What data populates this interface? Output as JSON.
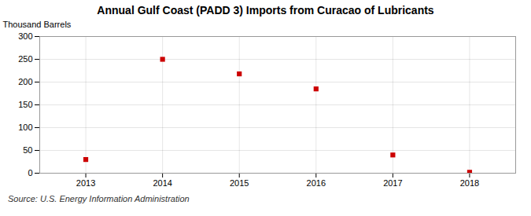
{
  "chart_data": {
    "type": "scatter",
    "title": "Annual Gulf Coast (PADD 3) Imports from Curacao of Lubricants",
    "ylabel": "Thousand Barrels",
    "source": "Source: U.S. Energy Information Administration",
    "x": [
      2013,
      2014,
      2015,
      2016,
      2017,
      2018
    ],
    "values": [
      30,
      250,
      218,
      185,
      40,
      2
    ],
    "color": "#cc0000",
    "marker": "square",
    "xlim": [
      2012.4,
      2018.6
    ],
    "ylim": [
      0,
      300
    ],
    "xticks": [
      2013,
      2014,
      2015,
      2016,
      2017,
      2018
    ],
    "yticks": [
      0,
      50,
      100,
      150,
      200,
      250,
      300
    ],
    "grid": true
  }
}
